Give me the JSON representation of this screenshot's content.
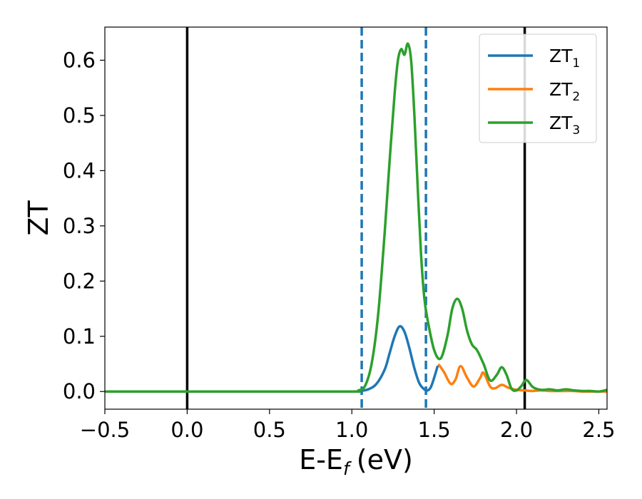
{
  "chart_data": {
    "type": "line",
    "xlabel": "E-E",
    "xlabel_subscript": "f",
    "xlabel_unit": "(eV)",
    "ylabel": "ZT",
    "xlim": [
      -0.5,
      2.55
    ],
    "ylim": [
      -0.032,
      0.66
    ],
    "x_ticks": [
      -0.5,
      0.0,
      0.5,
      1.0,
      1.5,
      2.0,
      2.5
    ],
    "x_tick_labels": [
      "−0.5",
      "0.0",
      "0.5",
      "1.0",
      "1.5",
      "2.0",
      "2.5"
    ],
    "y_ticks": [
      0.0,
      0.1,
      0.2,
      0.3,
      0.4,
      0.5,
      0.6
    ],
    "y_tick_labels": [
      "0.0",
      "0.1",
      "0.2",
      "0.3",
      "0.4",
      "0.5",
      "0.6"
    ],
    "grid": false,
    "legend_position": "top-right",
    "vertical_lines": [
      {
        "x": 0.0,
        "style": "solid",
        "color": "#000000"
      },
      {
        "x": 2.05,
        "style": "solid",
        "color": "#000000"
      },
      {
        "x": 1.06,
        "style": "dashed",
        "color": "#1f77b4"
      },
      {
        "x": 1.45,
        "style": "dashed",
        "color": "#1f77b4"
      }
    ],
    "series": [
      {
        "name": "ZT",
        "subscript": "1",
        "color": "#1f77b4",
        "x": [
          -0.5,
          0.0,
          0.5,
          1.0,
          1.05,
          1.1,
          1.15,
          1.2,
          1.23,
          1.26,
          1.29,
          1.32,
          1.35,
          1.38,
          1.41,
          1.44,
          1.46,
          1.48,
          1.5,
          1.52
        ],
        "y": [
          0.0,
          0.0,
          0.0,
          0.0,
          0.001,
          0.004,
          0.014,
          0.04,
          0.07,
          0.1,
          0.118,
          0.108,
          0.078,
          0.042,
          0.015,
          0.004,
          0.002,
          0.008,
          0.025,
          0.045
        ]
      },
      {
        "name": "ZT",
        "subscript": "2",
        "color": "#ff7f0e",
        "x": [
          1.53,
          1.56,
          1.6,
          1.63,
          1.66,
          1.7,
          1.74,
          1.78,
          1.8,
          1.84,
          1.87,
          1.91,
          1.95,
          2.0,
          2.05,
          2.1,
          2.15,
          2.2,
          2.25,
          2.3,
          2.35,
          2.4,
          2.45,
          2.5,
          2.55
        ],
        "y": [
          0.048,
          0.035,
          0.014,
          0.022,
          0.046,
          0.025,
          0.009,
          0.025,
          0.034,
          0.009,
          0.006,
          0.012,
          0.007,
          0.003,
          0.002,
          0.001,
          0.002,
          0.001,
          0.001,
          0.001,
          0.001,
          0.0,
          0.0,
          0.0,
          0.0
        ]
      },
      {
        "name": "ZT",
        "subscript": "3",
        "color": "#2ca02c",
        "x": [
          -0.5,
          0.0,
          0.5,
          1.0,
          1.04,
          1.08,
          1.12,
          1.16,
          1.2,
          1.23,
          1.26,
          1.28,
          1.3,
          1.32,
          1.34,
          1.36,
          1.38,
          1.4,
          1.42,
          1.44,
          1.46,
          1.5,
          1.54,
          1.58,
          1.61,
          1.64,
          1.67,
          1.7,
          1.73,
          1.76,
          1.8,
          1.84,
          1.88,
          1.91,
          1.94,
          1.97,
          2.0,
          2.03,
          2.06,
          2.1,
          2.15,
          2.2,
          2.25,
          2.3,
          2.35,
          2.4,
          2.45,
          2.5,
          2.55
        ],
        "y": [
          0.0,
          0.0,
          0.0,
          0.0,
          0.002,
          0.01,
          0.05,
          0.14,
          0.29,
          0.42,
          0.54,
          0.6,
          0.62,
          0.61,
          0.63,
          0.6,
          0.5,
          0.37,
          0.25,
          0.17,
          0.13,
          0.075,
          0.06,
          0.1,
          0.15,
          0.168,
          0.15,
          0.11,
          0.085,
          0.075,
          0.05,
          0.02,
          0.03,
          0.044,
          0.03,
          0.005,
          0.002,
          0.01,
          0.021,
          0.008,
          0.003,
          0.004,
          0.002,
          0.004,
          0.002,
          0.001,
          0.001,
          0.0,
          0.003
        ]
      }
    ]
  }
}
